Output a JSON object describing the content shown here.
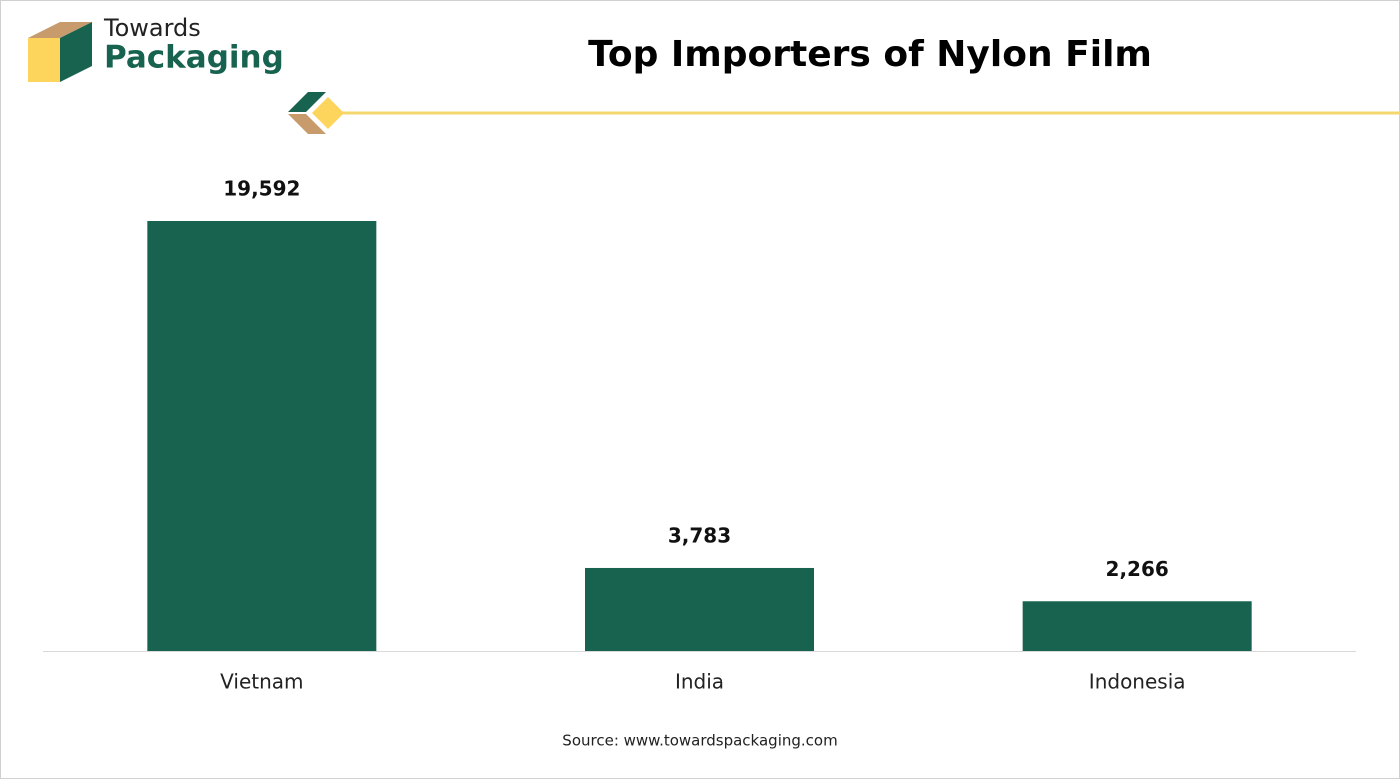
{
  "logo": {
    "line1": "Towards",
    "line2": "Packaging"
  },
  "chart_data": {
    "type": "bar",
    "title": "Top Importers of Nylon Film",
    "categories": [
      "Vietnam",
      "India",
      "Indonesia"
    ],
    "values": [
      19592,
      3783,
      2266
    ],
    "value_labels": [
      "19,592",
      "3,783",
      "2,266"
    ],
    "color": "#17634f",
    "source": "Source: www.towardspackaging.com"
  }
}
